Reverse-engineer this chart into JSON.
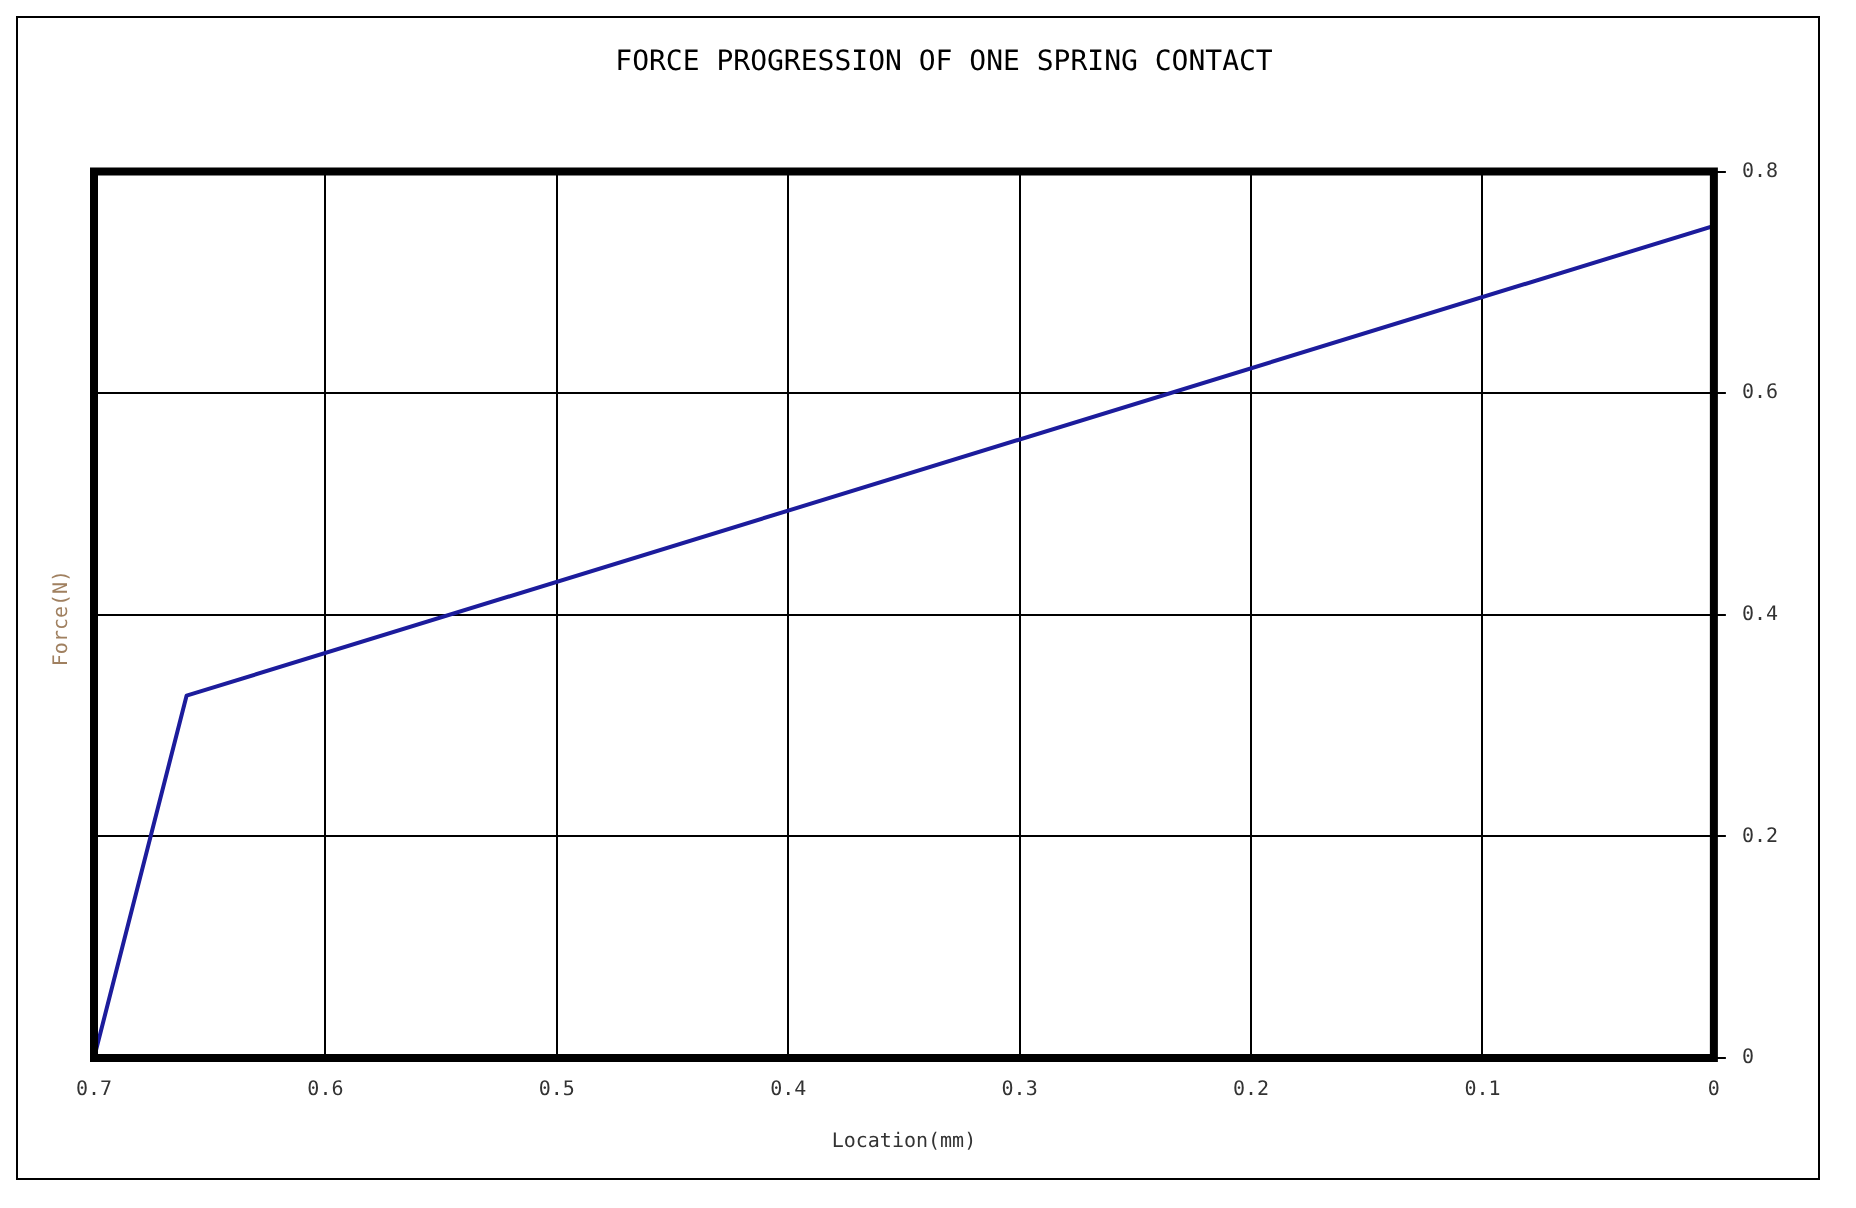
{
  "chart_data": {
    "type": "line",
    "title": "FORCE PROGRESSION OF ONE SPRING CONTACT",
    "xlabel": "Location(mm)",
    "ylabel": "Force(N)",
    "x": [
      0.7,
      0.66,
      0
    ],
    "series": [
      {
        "color": "#1c1c9c",
        "values": [
          0,
          0.327,
          0.751
        ]
      }
    ],
    "xlim": [
      0.7,
      0
    ],
    "xticks": [
      0.7,
      0.6,
      0.5,
      0.4,
      0.3,
      0.2,
      0.1,
      0
    ],
    "ylim": [
      0,
      0.8
    ],
    "yticks": [
      0,
      0.2,
      0.4,
      0.6,
      0.8
    ],
    "grid": true,
    "legend": false,
    "marker": "none",
    "line_style": "solid"
  }
}
